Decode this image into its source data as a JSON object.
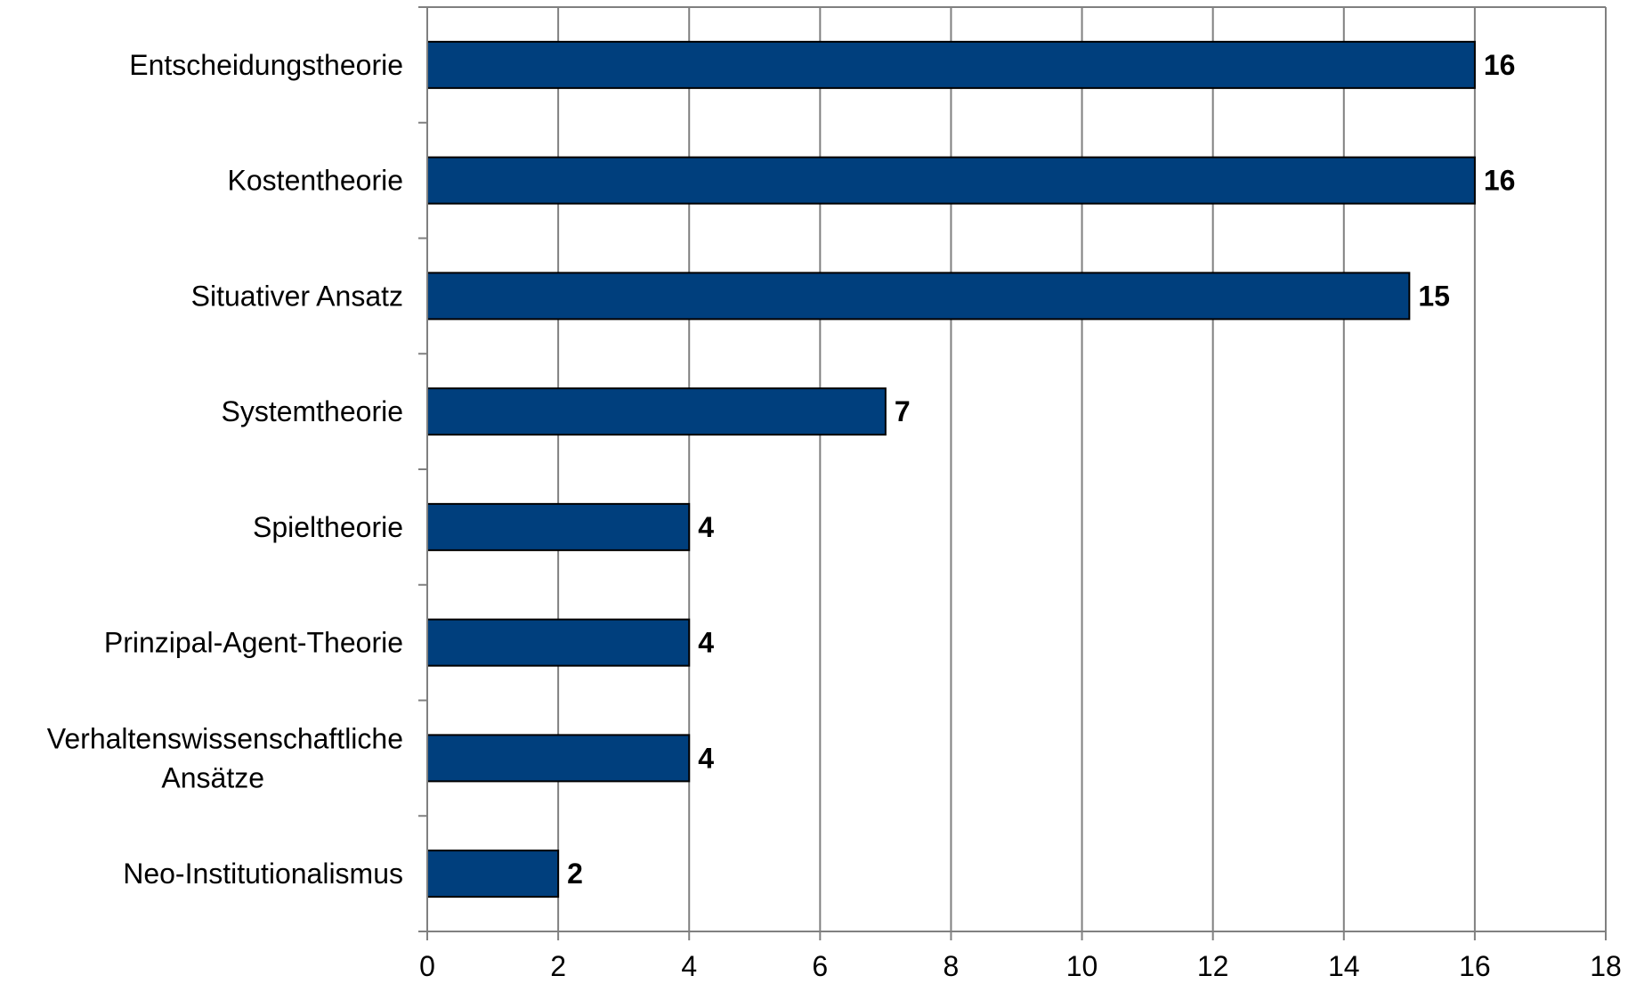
{
  "chart_data": {
    "type": "bar",
    "orientation": "horizontal",
    "categories": [
      "Entscheidungstheorie",
      "Kostentheorie",
      "Situativer Ansatz",
      "Systemtheorie",
      "Spieltheorie",
      "Prinzipal-Agent-Theorie",
      "Verhaltenswissenschaftliche Ansätze",
      "Neo-Institutionalismus"
    ],
    "category_lines": [
      [
        "Entscheidungstheorie"
      ],
      [
        "Kostentheorie"
      ],
      [
        "Situativer Ansatz"
      ],
      [
        "Systemtheorie"
      ],
      [
        "Spieltheorie"
      ],
      [
        "Prinzipal-Agent-Theorie"
      ],
      [
        "Verhaltenswissenschaftliche",
        "Ansätze"
      ],
      [
        "Neo-Institutionalismus"
      ]
    ],
    "values": [
      16,
      16,
      15,
      7,
      4,
      4,
      4,
      2
    ],
    "data_labels": [
      "16",
      "16",
      "15",
      "7",
      "4",
      "4",
      "4",
      "2"
    ],
    "xlim": [
      0,
      18
    ],
    "x_ticks": [
      0,
      2,
      4,
      6,
      8,
      10,
      12,
      14,
      16,
      18
    ],
    "x_tick_labels": [
      "0",
      "2",
      "4",
      "6",
      "8",
      "10",
      "12",
      "14",
      "16",
      "18"
    ],
    "grid": "vertical",
    "legend": "none",
    "title": "",
    "xlabel": "",
    "ylabel": "",
    "colors": {
      "bar": "#003f7d",
      "bar_edge": "#000000",
      "grid": "#808080"
    }
  }
}
